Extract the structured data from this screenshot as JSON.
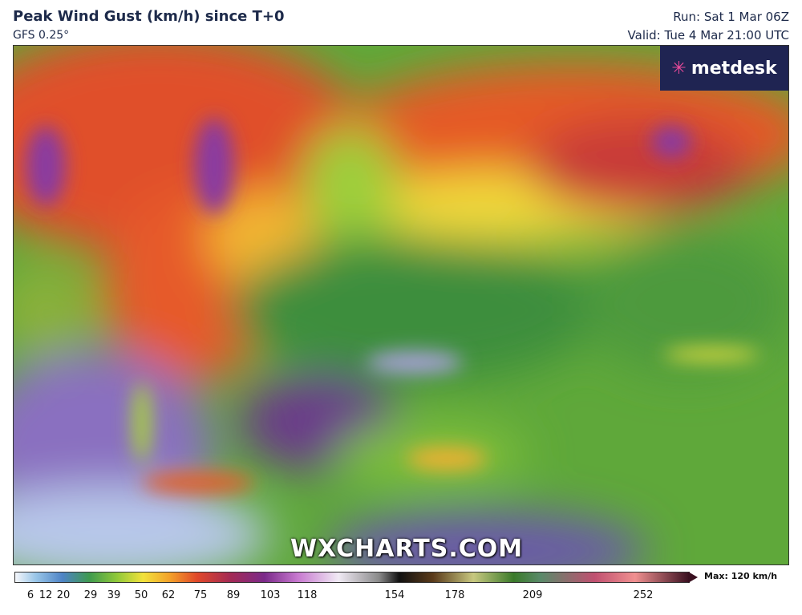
{
  "header": {
    "title": "Peak Wind Gust (km/h) since T+0",
    "subtitle": "GFS 0.25°",
    "run": "Run: Sat 1 Mar 06Z",
    "valid": "Valid: Tue 4 Mar 21:00 UTC"
  },
  "logo": "metdesk",
  "watermark": "WXCHARTS.COM",
  "legend": {
    "ticks": [
      6,
      12,
      20,
      29,
      39,
      50,
      62,
      75,
      89,
      103,
      118,
      154,
      178,
      209,
      252
    ],
    "max_label": "Max: 120 km/h"
  }
}
